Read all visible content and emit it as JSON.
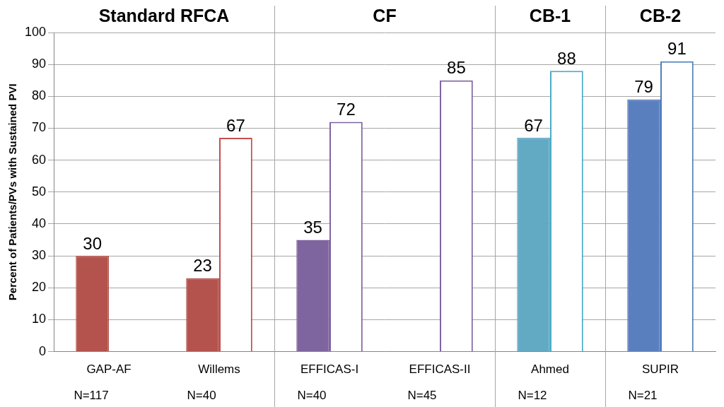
{
  "chart_data": {
    "type": "bar",
    "y_label": "Percent of Patients/PVs with Sustained PVI",
    "categories": [
      "GAP-AF",
      "Willems",
      "EFFICAS-I",
      "EFFICAS-II",
      "Ahmed",
      "SUPIR"
    ],
    "series": [
      {
        "marker": "filled",
        "colors": [
          "#b4524e",
          "#b4524e",
          "#7f65a0",
          "#7f65a0",
          "#62aac4",
          "#5a7fbf"
        ],
        "values": [
          30,
          23,
          35,
          null,
          67,
          79
        ]
      },
      {
        "marker": "outline",
        "colors": [
          "#c0504d",
          "#c0504d",
          "#8064a2",
          "#8064a2",
          "#4bacc6",
          "#4f81bd"
        ],
        "values": [
          null,
          67,
          72,
          85,
          88,
          91
        ]
      }
    ],
    "annotations": {
      "groups": [
        {
          "title": "Standard RFCA",
          "categories": [
            "GAP-AF",
            "Willems"
          ]
        },
        {
          "title": "CF",
          "categories": [
            "EFFICAS-I",
            "EFFICAS-II"
          ]
        },
        {
          "title": "CB-1",
          "categories": [
            "Ahmed"
          ]
        },
        {
          "title": "CB-2",
          "categories": [
            "SUPIR"
          ]
        }
      ],
      "sample_sizes": [
        "N=117",
        "N=40",
        "N=40",
        "N=45",
        "N=12",
        "N=21"
      ]
    },
    "ylim": [
      0,
      100
    ],
    "yticks": [
      0,
      10,
      20,
      30,
      40,
      50,
      60,
      70,
      80,
      90,
      100
    ],
    "grid": true,
    "data_labels": true,
    "legend": "none"
  }
}
